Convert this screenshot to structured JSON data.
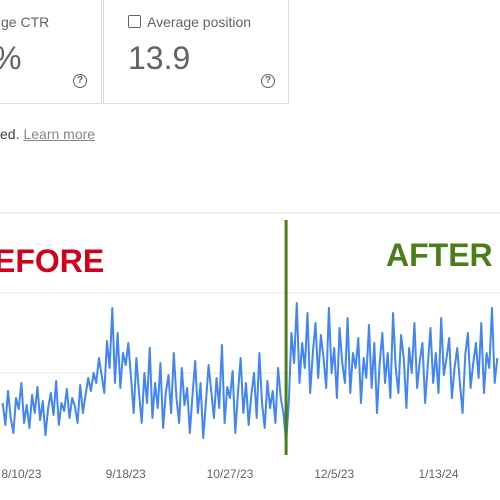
{
  "cards": [
    {
      "label": "ge CTR",
      "value": "%"
    },
    {
      "label": "Average position",
      "value": "13.9"
    }
  ],
  "notice": {
    "text": "ed.",
    "link": "Learn more"
  },
  "chart_data": {
    "type": "line",
    "x": [
      -7,
      -6,
      -5,
      -4,
      -3,
      -2,
      -1,
      0,
      1,
      2,
      3,
      4,
      5,
      6,
      7,
      8,
      9,
      10,
      11,
      12,
      13,
      14,
      15,
      16,
      17,
      18,
      19,
      20,
      21,
      22,
      23,
      24,
      25,
      26,
      27,
      28,
      29,
      30,
      31,
      32,
      33,
      34,
      35,
      36,
      37,
      38,
      39,
      40,
      41,
      42,
      43,
      44,
      45,
      46,
      47,
      48,
      49,
      50,
      51,
      52,
      53,
      54,
      55,
      56,
      57,
      58,
      59,
      60,
      61,
      62,
      63,
      64,
      65,
      66,
      67,
      68,
      69,
      70,
      71,
      72,
      73,
      74,
      75,
      76,
      77,
      78,
      79,
      80,
      81,
      82,
      83,
      84,
      85,
      86,
      87,
      88,
      89,
      90,
      91,
      92,
      93,
      94,
      95,
      96,
      97,
      98,
      99,
      100,
      101,
      102,
      103,
      104,
      105,
      106,
      107,
      108,
      109,
      110,
      111,
      112,
      113,
      114,
      115,
      116,
      117,
      118,
      119,
      120,
      121,
      122,
      123,
      124,
      125,
      126,
      127,
      128,
      129,
      130,
      131,
      132,
      133,
      134,
      135,
      136,
      137,
      138,
      139,
      140,
      141,
      142,
      143,
      144,
      145,
      146,
      147,
      148,
      149,
      150,
      151,
      152,
      153,
      154,
      155,
      156,
      157,
      158,
      159,
      160,
      161,
      162,
      163,
      164,
      165,
      166,
      167,
      168,
      169,
      170,
      171,
      172,
      173,
      174,
      175,
      176,
      177,
      178
    ],
    "series": [
      {
        "color": "#4285f4",
        "values": [
          50,
          28,
          62,
          35,
          20,
          55,
          44,
          70,
          30,
          48,
          25,
          58,
          40,
          66,
          33,
          52,
          18,
          45,
          60,
          38,
          72,
          28,
          50,
          42,
          64,
          35,
          55,
          47,
          30,
          68,
          40,
          58,
          75,
          62,
          80,
          70,
          95,
          78,
          60,
          112,
          85,
          145,
          70,
          120,
          65,
          100,
          88,
          110,
          75,
          40,
          95,
          60,
          30,
          80,
          50,
          105,
          35,
          70,
          45,
          90,
          25,
          60,
          78,
          40,
          100,
          55,
          30,
          85,
          48,
          65,
          20,
          58,
          92,
          40,
          70,
          15,
          50,
          88,
          62,
          35,
          75,
          45,
          108,
          30,
          66,
          55,
          82,
          20,
          60,
          95,
          40,
          70,
          28,
          58,
          80,
          35,
          100,
          50,
          25,
          72,
          45,
          62,
          30,
          85,
          55,
          40,
          10,
          50,
          120,
          90,
          150,
          70,
          110,
          85,
          140,
          60,
          100,
          130,
          75,
          118,
          95,
          65,
          145,
          80,
          105,
          55,
          125,
          90,
          70,
          135,
          60,
          100,
          85,
          115,
          50,
          95,
          75,
          128,
          65,
          110,
          40,
          90,
          120,
          70,
          100,
          55,
          140,
          85,
          60,
          118,
          95,
          45,
          105,
          80,
          130,
          65,
          92,
          110,
          50,
          88,
          125,
          70,
          100,
          60,
          135,
          78,
          95,
          115,
          55,
          85,
          105,
          70,
          40,
          98,
          120,
          65,
          90,
          110,
          75,
          130,
          60,
          100,
          85,
          145,
          70,
          95
        ]
      }
    ],
    "xlim": [
      -8,
      179
    ],
    "xticks": [
      {
        "value": 0,
        "label": "8/10/23"
      },
      {
        "value": 39,
        "label": "9/18/23"
      },
      {
        "value": 78,
        "label": "10/27/23"
      },
      {
        "value": 117,
        "label": "12/5/23"
      },
      {
        "value": 156,
        "label": "1/13/24"
      }
    ],
    "ylim": [
      0,
      240
    ],
    "gridlines": [
      80,
      160
    ],
    "marker": {
      "x": 99,
      "color": "#4b7d18"
    },
    "annotations": [
      {
        "text": "EFORE",
        "color": "#d0021b"
      },
      {
        "text": "AFTER",
        "color": "#4b7d18"
      }
    ]
  }
}
